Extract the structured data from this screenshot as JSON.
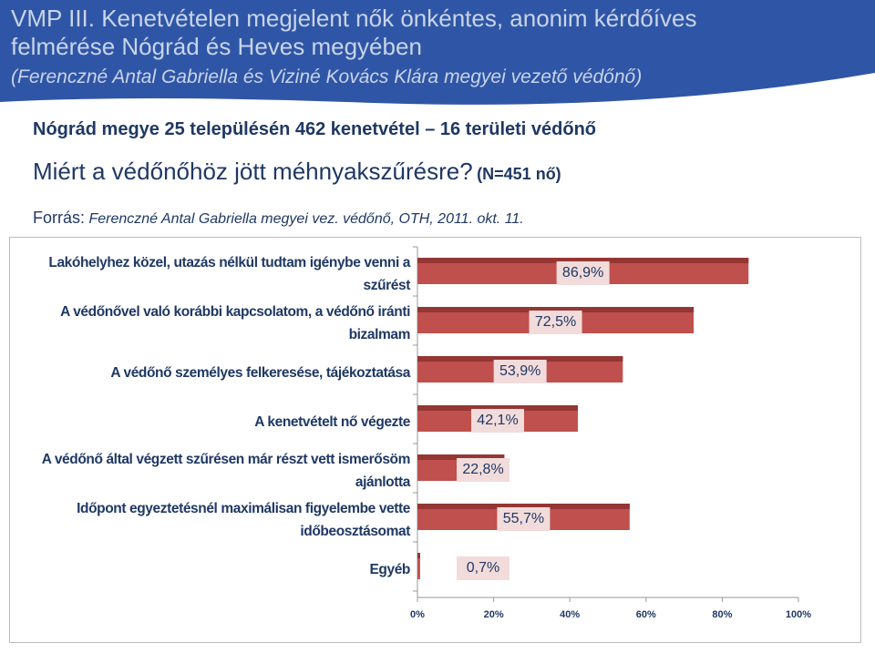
{
  "header": {
    "title_lines": [
      "VMP III. Kenetvételen megjelent nők önkéntes, anonim kérdőíves",
      "felmérése Nógrád és Heves megyében",
      "(Ferenczné Antal Gabriella és Viziné Kovács Klára megyei vezető védőnő)"
    ],
    "summary": "Nógrád megye 25 településén 462 kenetvétel – 16 területi védőnő",
    "question": "Miért a védőnőhöz jött méhnyakszűrésre?",
    "sample": "(N=451 nő)",
    "source_label": "Forrás:",
    "source": "Ferenczné Antal Gabriella megyei vez. védőnő, OTH, 2011. okt. 11."
  },
  "chart_data": {
    "type": "hbar",
    "categories": [
      "Lakóhelyhez közel, utazás nélkül tudtam igénybe venni a szűrést",
      "A védőnővel való korábbi kapcsolatom, a védőnő iránti bizalmam",
      "A védőnő személyes felkeresése, tájékoztatása",
      "A kenetvételt nő végezte",
      "A védőnő által végzett szűrésen már részt vett ismerősöm ajánlotta",
      "Időpont egyeztetésnél maximálisan figyelembe vette időbeosztásomat",
      "Egyéb"
    ],
    "values": [
      86.9,
      72.5,
      53.9,
      42.1,
      22.8,
      55.7,
      0.7
    ],
    "value_labels": [
      "86,9%",
      "72,5%",
      "53,9%",
      "42,1%",
      "22,8%",
      "55,7%",
      "0,7%"
    ],
    "color": "#c0504d",
    "xlim": [
      0,
      100
    ],
    "xticks": [
      {
        "value": 0,
        "label": "0%"
      },
      {
        "value": 20,
        "label": "20%"
      },
      {
        "value": 40,
        "label": "40%"
      },
      {
        "value": 60,
        "label": "60%"
      },
      {
        "value": 80,
        "label": "80%"
      },
      {
        "value": 100,
        "label": "100%"
      }
    ]
  }
}
